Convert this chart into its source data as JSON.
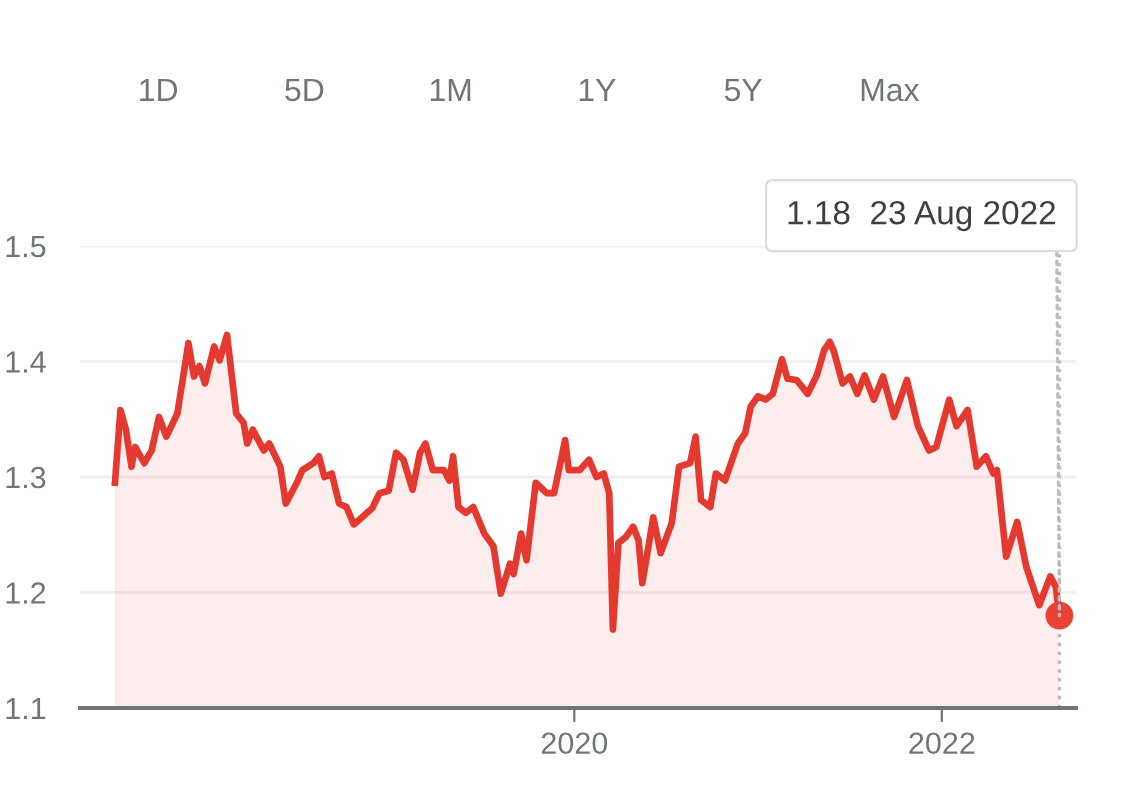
{
  "chart_data": {
    "type": "area",
    "annotations": [
      "1D",
      "5D",
      "1M",
      "1Y",
      "5Y",
      "Max",
      {
        "text": "1.18  23 Aug 2022",
        "x": 2022.64,
        "y": 1.18
      }
    ],
    "series": [
      {
        "color": "#e5392f",
        "x": [
          2017.5,
          2017.53,
          2017.56,
          2017.59,
          2017.61,
          2017.66,
          2017.7,
          2017.74,
          2017.78,
          2017.84,
          2017.9,
          2017.93,
          2017.96,
          2017.99,
          2018.04,
          2018.07,
          2018.11,
          2018.16,
          2018.2,
          2018.22,
          2018.25,
          2018.31,
          2018.34,
          2018.4,
          2018.43,
          2018.49,
          2018.52,
          2018.58,
          2018.61,
          2018.64,
          2018.68,
          2018.72,
          2018.76,
          2018.8,
          2018.83,
          2018.9,
          2018.94,
          2018.99,
          2019.03,
          2019.07,
          2019.12,
          2019.16,
          2019.19,
          2019.23,
          2019.29,
          2019.32,
          2019.34,
          2019.37,
          2019.41,
          2019.45,
          2019.51,
          2019.56,
          2019.6,
          2019.65,
          2019.67,
          2019.71,
          2019.74,
          2019.79,
          2019.85,
          2019.89,
          2019.95,
          2019.97,
          2020.03,
          2020.08,
          2020.12,
          2020.16,
          2020.19,
          2020.21,
          2020.24,
          2020.28,
          2020.32,
          2020.35,
          2020.37,
          2020.43,
          2020.47,
          2020.53,
          2020.57,
          2020.63,
          2020.66,
          2020.69,
          2020.74,
          2020.77,
          2020.82,
          2020.89,
          2020.93,
          2020.96,
          2021.0,
          2021.04,
          2021.08,
          2021.13,
          2021.16,
          2021.21,
          2021.27,
          2021.32,
          2021.36,
          2021.39,
          2021.41,
          2021.46,
          2021.5,
          2021.54,
          2021.58,
          2021.63,
          2021.68,
          2021.74,
          2021.81,
          2021.87,
          2021.93,
          2021.97,
          2022.04,
          2022.08,
          2022.14,
          2022.19,
          2022.24,
          2022.28,
          2022.3,
          2022.35,
          2022.41,
          2022.46,
          2022.53,
          2022.59,
          2022.62,
          2022.64
        ],
        "values": [
          1.295,
          1.358,
          1.341,
          1.309,
          1.326,
          1.312,
          1.323,
          1.352,
          1.335,
          1.355,
          1.416,
          1.387,
          1.396,
          1.381,
          1.413,
          1.401,
          1.423,
          1.355,
          1.347,
          1.329,
          1.341,
          1.323,
          1.329,
          1.309,
          1.277,
          1.295,
          1.306,
          1.312,
          1.318,
          1.3,
          1.303,
          1.277,
          1.274,
          1.259,
          1.263,
          1.273,
          1.286,
          1.288,
          1.321,
          1.315,
          1.289,
          1.321,
          1.329,
          1.306,
          1.306,
          1.297,
          1.318,
          1.274,
          1.269,
          1.274,
          1.251,
          1.24,
          1.199,
          1.225,
          1.216,
          1.251,
          1.228,
          1.295,
          1.286,
          1.286,
          1.332,
          1.306,
          1.306,
          1.315,
          1.3,
          1.303,
          1.286,
          1.168,
          1.243,
          1.248,
          1.257,
          1.245,
          1.208,
          1.265,
          1.234,
          1.26,
          1.309,
          1.312,
          1.335,
          1.28,
          1.274,
          1.303,
          1.297,
          1.329,
          1.338,
          1.361,
          1.37,
          1.367,
          1.372,
          1.402,
          1.385,
          1.384,
          1.372,
          1.388,
          1.41,
          1.417,
          1.41,
          1.381,
          1.387,
          1.372,
          1.388,
          1.367,
          1.387,
          1.352,
          1.384,
          1.344,
          1.323,
          1.326,
          1.367,
          1.344,
          1.358,
          1.309,
          1.318,
          1.303,
          1.306,
          1.231,
          1.261,
          1.222,
          1.189,
          1.214,
          1.205,
          1.18
        ]
      },
      {
        "type": "scatter",
        "color": "#ea4335",
        "x": [
          2022.64
        ],
        "values": [
          1.18
        ]
      }
    ],
    "xlim": [
      2017.31,
      2022.73
    ],
    "ylim": [
      1.1,
      1.5
    ],
    "xticks": [
      2020,
      2022
    ],
    "yticks": [
      1.1,
      1.2,
      1.3,
      1.4,
      1.5
    ],
    "grid": "y",
    "ref_lines": [
      {
        "axis": "x",
        "value": 2022.64,
        "color": "#bdbdbd",
        "line_style": "dotted"
      }
    ]
  }
}
